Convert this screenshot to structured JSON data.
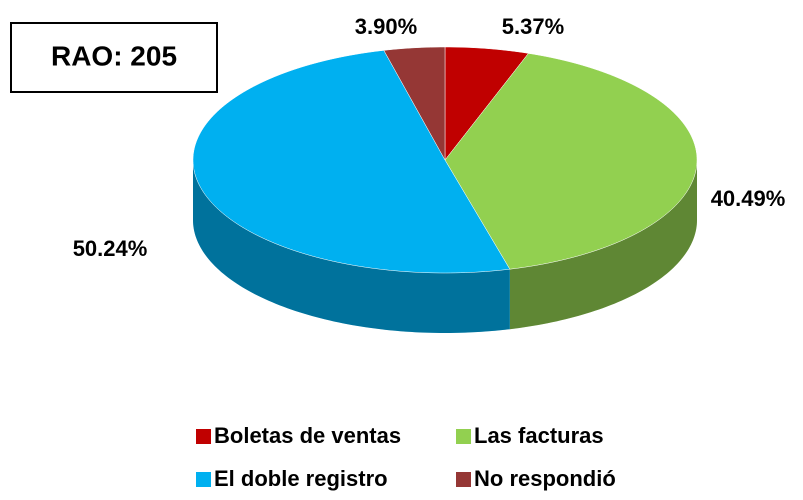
{
  "chart_data": {
    "type": "pie",
    "annotation": "RAO: 205",
    "categories": [
      "Boletas de ventas",
      "Las facturas",
      "El doble registro",
      "No respondió"
    ],
    "values": [
      5.37,
      40.49,
      50.24,
      3.9
    ],
    "value_labels": [
      "5.37%",
      "40.49%",
      "50.24%",
      "3.90%"
    ],
    "colors": [
      "#c00000",
      "#92d050",
      "#00b0f0",
      "#953735"
    ],
    "legend": "bottom"
  }
}
